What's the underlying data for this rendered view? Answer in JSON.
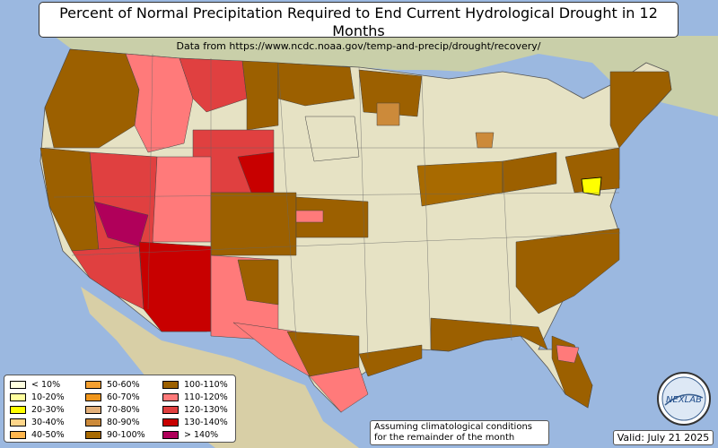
{
  "title": "Percent of Normal Precipitation Required to End Current Hydrological Drought in 12 Months",
  "subtitle": "Data from https://www.ncdc.noaa.gov/temp-and-precip/drought/recovery/",
  "colors": {
    "ocean": "#9bb8e0",
    "land": "#e6e2c4",
    "border": "#555555"
  },
  "legend": [
    {
      "label": "< 10%",
      "color": "#ffffe0"
    },
    {
      "label": "10-20%",
      "color": "#ffff9e"
    },
    {
      "label": "20-30%",
      "color": "#ffff00"
    },
    {
      "label": "30-40%",
      "color": "#ffd68a"
    },
    {
      "label": "40-50%",
      "color": "#ffb64d"
    },
    {
      "label": "50-60%",
      "color": "#f5a030"
    },
    {
      "label": "60-70%",
      "color": "#f0961c"
    },
    {
      "label": "70-80%",
      "color": "#e3b07a"
    },
    {
      "label": "80-90%",
      "color": "#cc8a3a"
    },
    {
      "label": "90-100%",
      "color": "#a86a00"
    },
    {
      "label": "100-110%",
      "color": "#9c6000"
    },
    {
      "label": "110-120%",
      "color": "#ff7a7a"
    },
    {
      "label": "120-130%",
      "color": "#e04040"
    },
    {
      "label": "130-140%",
      "color": "#c80000"
    },
    {
      "label": "> 140%",
      "color": "#b0005a"
    }
  ],
  "note_line1": "Assuming climatological conditions",
  "note_line2": "for the remainder of the month",
  "valid": "Valid: July 21 2025",
  "logo_text": "NEXLAB"
}
